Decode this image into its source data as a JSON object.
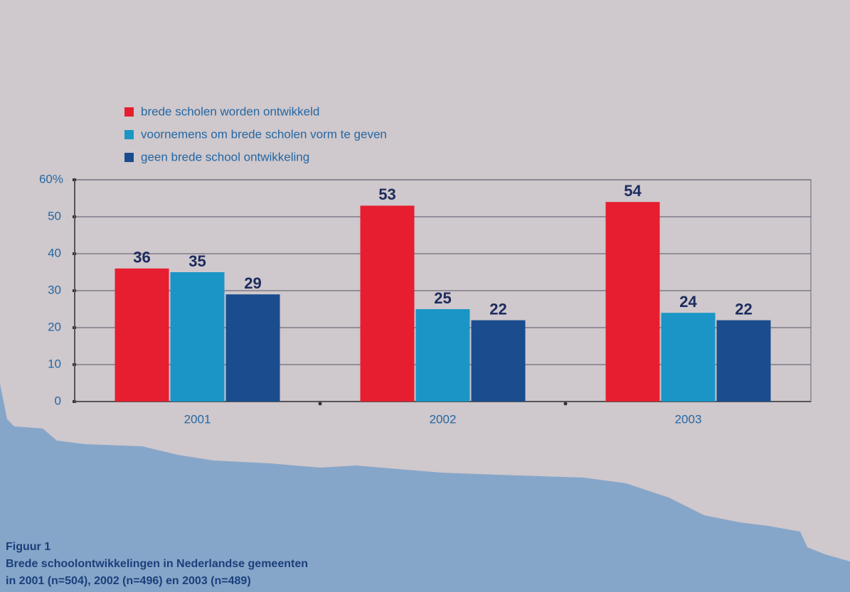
{
  "chart_data": {
    "type": "bar",
    "categories": [
      "2001",
      "2002",
      "2003"
    ],
    "series": [
      {
        "name": "brede scholen worden ontwikkeld",
        "color": "#e61e30",
        "values": [
          36,
          53,
          54
        ]
      },
      {
        "name": "voornemens om brede scholen vorm te geven",
        "color": "#1b95c6",
        "values": [
          35,
          25,
          24
        ]
      },
      {
        "name": "geen brede school ontwikkeling",
        "color": "#1a4c8e",
        "values": [
          29,
          22,
          22
        ]
      }
    ],
    "ylim": [
      0,
      60
    ],
    "yticks": [
      0,
      10,
      20,
      30,
      40,
      50,
      {
        "value": 60,
        "label": "60%"
      }
    ],
    "grid": true,
    "caption": [
      "Figuur 1",
      "Brede schoolontwikkelingen in Nederlandse gemeenten",
      "in 2001 (n=504), 2002 (n=496) en 2003 (n=489)"
    ]
  }
}
